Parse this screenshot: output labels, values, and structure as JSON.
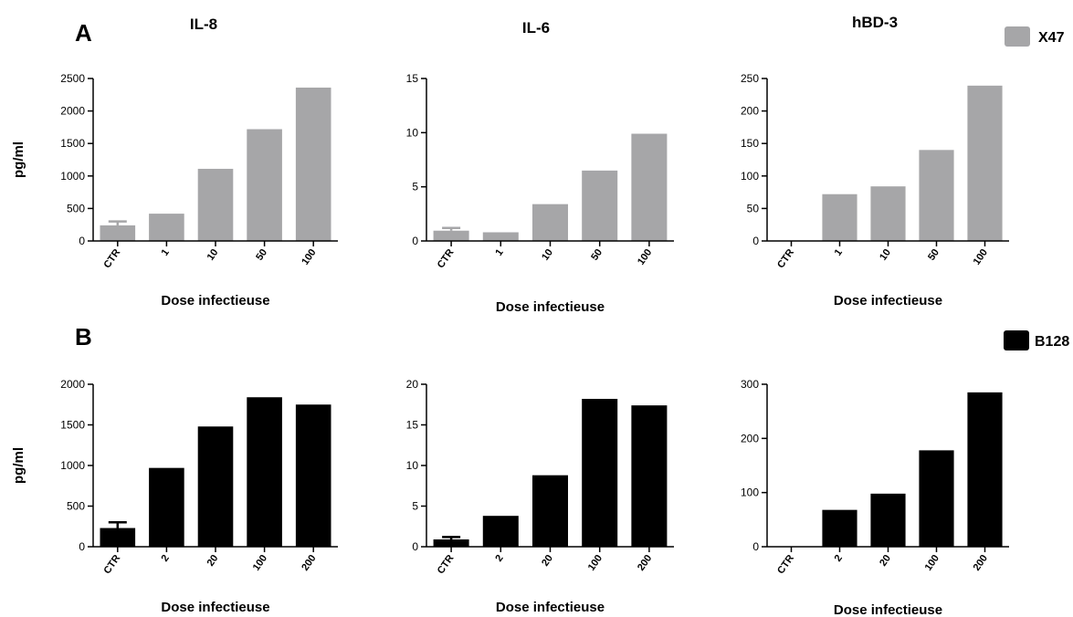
{
  "panels": [
    {
      "letter": "A",
      "legend": {
        "label": "X47",
        "color": "#a6a6a8"
      }
    },
    {
      "letter": "B",
      "legend": {
        "label": "B128",
        "color": "#000000"
      }
    }
  ],
  "chart_data": [
    {
      "type": "bar",
      "panel": "A",
      "title": "IL-8",
      "xlabel": "Dose infectieuse",
      "ylabel": "pg/ml",
      "categories": [
        "CTR",
        "1",
        "10",
        "50",
        "100"
      ],
      "values": [
        240,
        420,
        1110,
        1720,
        2360
      ],
      "error": [
        60,
        null,
        null,
        null,
        null
      ],
      "ylim": [
        0,
        2500
      ],
      "yticks": [
        0,
        500,
        1000,
        1500,
        2000,
        2500
      ],
      "series": [
        {
          "name": "X47",
          "color": "#a6a6a8"
        }
      ],
      "grid": false
    },
    {
      "type": "bar",
      "panel": "A",
      "title": "IL-6",
      "xlabel": "Dose infectieuse",
      "ylabel": "",
      "categories": [
        "CTR",
        "1",
        "10",
        "50",
        "100"
      ],
      "values": [
        0.95,
        0.8,
        3.4,
        6.5,
        9.9
      ],
      "error": [
        0.25,
        null,
        null,
        null,
        null
      ],
      "ylim": [
        0,
        15
      ],
      "yticks": [
        0,
        5,
        10,
        15
      ],
      "series": [
        {
          "name": "X47",
          "color": "#a6a6a8"
        }
      ],
      "grid": false
    },
    {
      "type": "bar",
      "panel": "A",
      "title": "hBD-3",
      "xlabel": "Dose infectieuse",
      "ylabel": "",
      "categories": [
        "CTR",
        "1",
        "10",
        "50",
        "100"
      ],
      "values": [
        0,
        72,
        84,
        140,
        239
      ],
      "error": [
        null,
        null,
        null,
        null,
        null
      ],
      "ylim": [
        0,
        250
      ],
      "yticks": [
        0,
        50,
        100,
        150,
        200,
        250
      ],
      "series": [
        {
          "name": "X47",
          "color": "#a6a6a8"
        }
      ],
      "grid": false
    },
    {
      "type": "bar",
      "panel": "B",
      "title": "",
      "xlabel": "Dose infectieuse",
      "ylabel": "pg/ml",
      "categories": [
        "CTR",
        "2",
        "20",
        "100",
        "200"
      ],
      "values": [
        230,
        970,
        1480,
        1840,
        1750
      ],
      "error": [
        70,
        null,
        null,
        null,
        null
      ],
      "ylim": [
        0,
        2000
      ],
      "yticks": [
        0,
        500,
        1000,
        1500,
        2000
      ],
      "series": [
        {
          "name": "B128",
          "color": "#000000"
        }
      ],
      "grid": false
    },
    {
      "type": "bar",
      "panel": "B",
      "title": "",
      "xlabel": "Dose infectieuse",
      "ylabel": "",
      "categories": [
        "CTR",
        "2",
        "20",
        "100",
        "200"
      ],
      "values": [
        0.9,
        3.8,
        8.8,
        18.2,
        17.4
      ],
      "error": [
        0.3,
        null,
        null,
        null,
        null
      ],
      "ylim": [
        0,
        20
      ],
      "yticks": [
        0,
        5,
        10,
        15,
        20
      ],
      "series": [
        {
          "name": "B128",
          "color": "#000000"
        }
      ],
      "grid": false
    },
    {
      "type": "bar",
      "panel": "B",
      "title": "",
      "xlabel": "Dose infectieuse",
      "ylabel": "",
      "categories": [
        "CTR",
        "2",
        "20",
        "100",
        "200"
      ],
      "values": [
        0,
        68,
        98,
        178,
        285
      ],
      "error": [
        null,
        null,
        null,
        null,
        null
      ],
      "ylim": [
        0,
        300
      ],
      "yticks": [
        0,
        100,
        200,
        300
      ],
      "series": [
        {
          "name": "B128",
          "color": "#000000"
        }
      ],
      "grid": false
    }
  ]
}
